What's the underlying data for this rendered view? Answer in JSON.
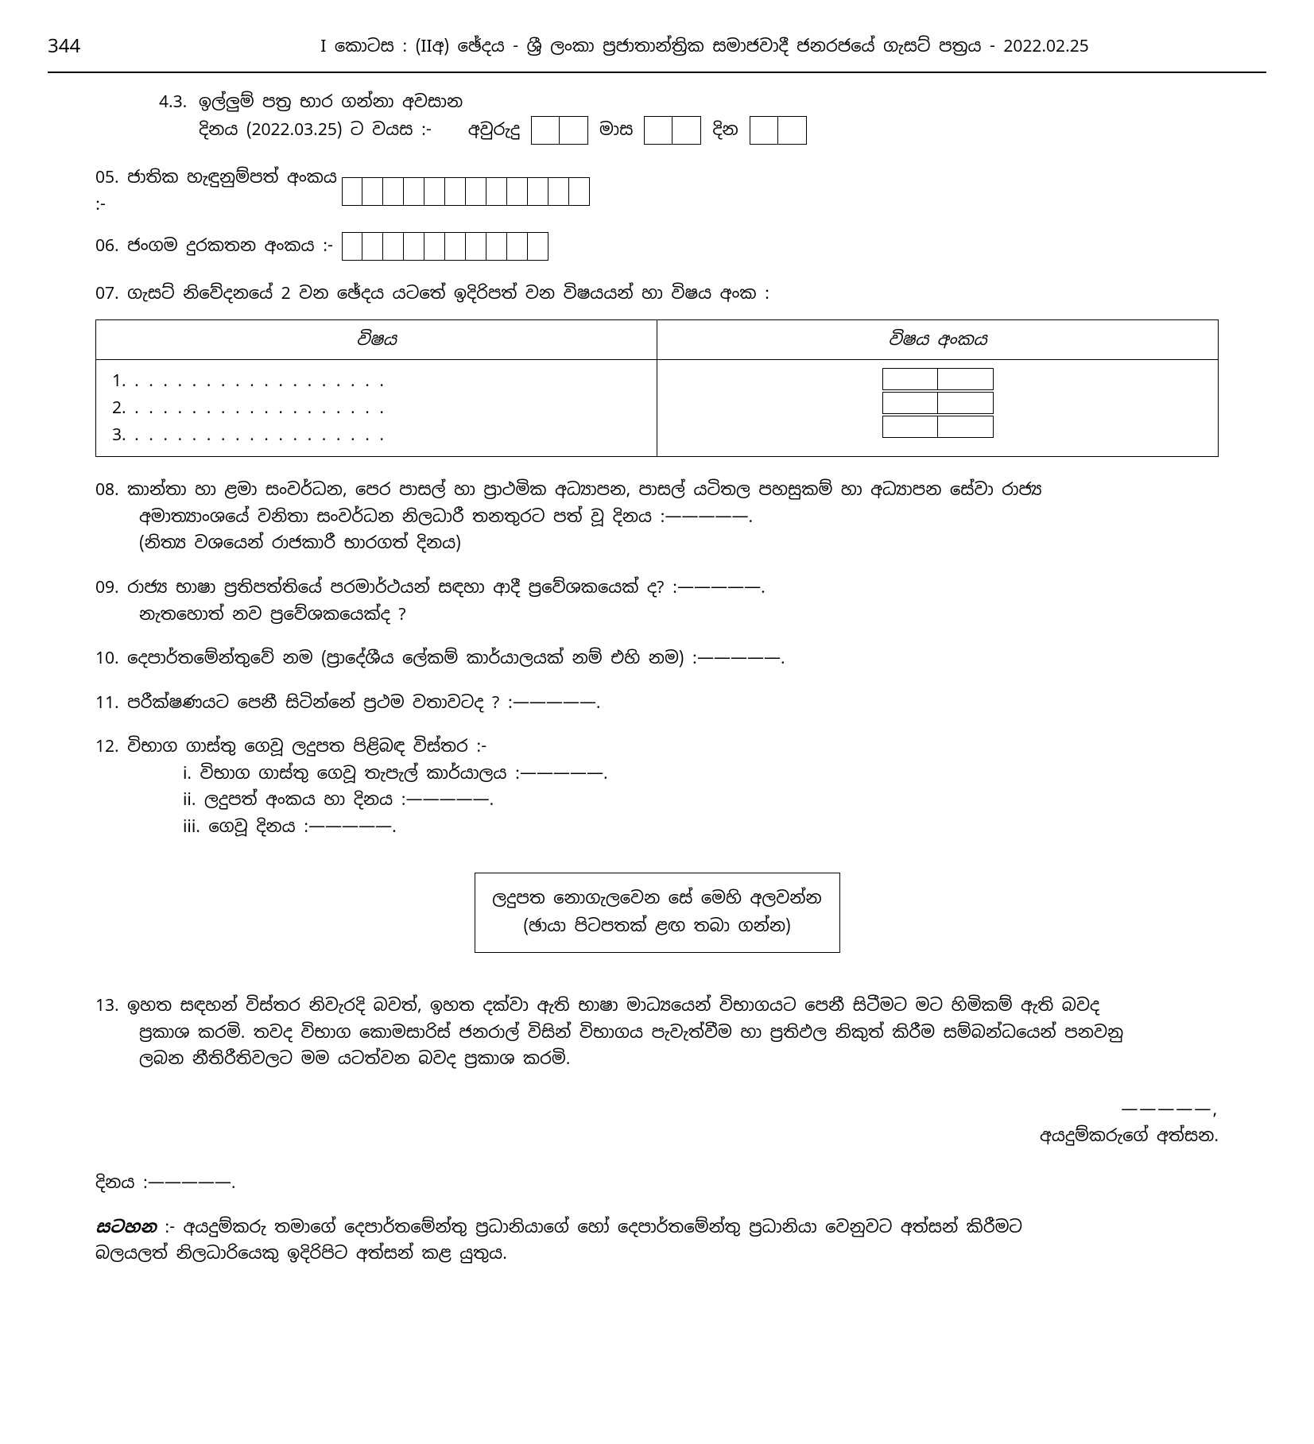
{
  "page_number": "344",
  "header_title": "I කොටස : (IIඅ) ඡේදය - ශ්‍රී ලංකා ප්‍රජාතාන්ත්‍රික සමාජවාදී ජනරජයේ ගැසට් පත්‍රය - 2022.02.25",
  "q43_num": "4.3.",
  "q43_text_l1": "ඉල්ලුම් පත්‍ර භාර ගන්නා අවසාන",
  "q43_text_l2": "දිනය (2022.03.25) ට වයස :-",
  "age_years": "අවුරුදු",
  "age_months": "මාස",
  "age_days": "දින",
  "q05": "05. ජාතික හැඳුනුම්පත් අංකය :-",
  "q06": "06. ජංගම දුරකතන අංකය :-",
  "q07": "07. ගැසට් නිවේදනයේ 2 වන ඡේදය යටතේ ඉදිරිපත් වන විෂයයන් හා විෂය අංක :",
  "table_h1": "විෂය",
  "table_h2": "විෂය අංකය",
  "row1": "1.",
  "row2": "2.",
  "row3": "3.",
  "q08_l1": "08. කාන්තා හා ළමා සංවර්ධන, පෙර පාසල් හා ප්‍රාථමික අධ්‍යාපන, පාසල් යටිතල පහසුකම් හා අධ්‍යාපන සේවා රාජ්‍ය",
  "q08_l2": "අමාත්‍යාංශයේ වනිතා සංවර්ධන නිලධාරී තනතුරට පත් වූ දිනය  :—————.",
  "q08_l3": "(නිත්‍ය වශයෙන් රාජකාරී භාරගත් දිනය)",
  "q09_l1": "09. රාජ්‍ය භාෂා ප්‍රතිපත්තියේ පරමාර්ථයන් සඳහා ආදී ප්‍රවේශකයෙක් ද?  :—————.",
  "q09_l2": "නැතහොත් නව ප්‍රවේශකයෙක්ද ?",
  "q10": "10. දෙපාර්තමේන්තුවේ නම (ප්‍රාදේශීය ලේකම් කාර්යාලයක් නම් එහි නම)  :—————.",
  "q11": "11. පරීක්ෂණයට පෙනී සිටින්නේ ප්‍රථම වතාවටද ?  :—————.",
  "q12": "12. විභාග ගාස්තු ගෙවූ ලදුපත පිළිබඳ විස්තර :-",
  "q12_i": "i.   විභාග ගාස්තු ගෙවූ තැපැල් කාර්යාලය  :—————.",
  "q12_ii": "ii.   ලදුපත් අංකය හා දිනය :—————.",
  "q12_iii": "iii.   ගෙවූ දිනය  :—————.",
  "receipt_l1": "ලදුපත නොගැලවෙන සේ මෙහි අලවන්න",
  "receipt_l2": "(ඡායා පිටපතක් ළඟ තබා ගන්න)",
  "q13_l1": "13. ඉහත සඳහන් විස්තර නිවැරදි බවත්, ඉහත දක්වා ඇති භාෂා මාධ්‍යයෙන් විභාගයට පෙනී සිටීමට මට හිමිකම් ඇති බවද",
  "q13_l2": "ප්‍රකාශ කරමි. තවද විභාග කොමසාරිස් ජනරාල් විසින් විභාගය පැවැත්වීම හා ප්‍රතිඵල නිකුත් කිරීම සම්බන්ධයෙන් පනවනු",
  "q13_l3": "ලබන නීතිරීතිවලට මම යටත්වන බවද ප්‍රකාශ කරමි.",
  "sig_comma": "—————,",
  "sig_label": "අයදුම්කරුගේ අත්සන.",
  "date_label": "දිනය :—————.",
  "note_label": "සටහන",
  "note_text_l1": " :- අයදුම්කරු තමාගේ දෙපාර්තමේන්තු ප්‍රධානියාගේ හෝ දෙපාර්තමේන්තු ප්‍රධානියා වෙනුවට අත්සන් කිරීමට",
  "note_text_l2": "බලයලත් නිලධාරියෙකු ඉදිරිපිට අත්සන් කළ යුතුය."
}
